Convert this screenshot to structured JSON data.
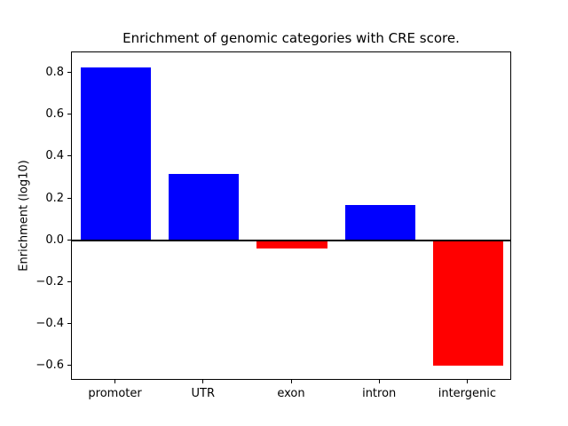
{
  "chart_data": {
    "type": "bar",
    "title": "Enrichment of genomic categories with CRE score.",
    "xlabel": "",
    "ylabel": "Enrichment (log10)",
    "categories": [
      "promoter",
      "UTR",
      "exon",
      "intron",
      "intergenic"
    ],
    "values": [
      0.83,
      0.32,
      -0.04,
      0.17,
      -0.6
    ],
    "bar_colors": [
      "#0000ff",
      "#0000ff",
      "#ff0000",
      "#0000ff",
      "#ff0000"
    ],
    "positive_color": "#0000ff",
    "negative_color": "#ff0000",
    "ylim": [
      -0.6715,
      0.9015
    ],
    "yticks": [
      -0.6,
      -0.4,
      -0.2,
      0.0,
      0.2,
      0.4,
      0.6,
      0.8
    ],
    "ytick_labels": [
      "−0.6",
      "−0.4",
      "−0.2",
      "0.0",
      "0.2",
      "0.4",
      "0.6",
      "0.8"
    ],
    "zero_line": true,
    "grid": false,
    "legend": false
  }
}
